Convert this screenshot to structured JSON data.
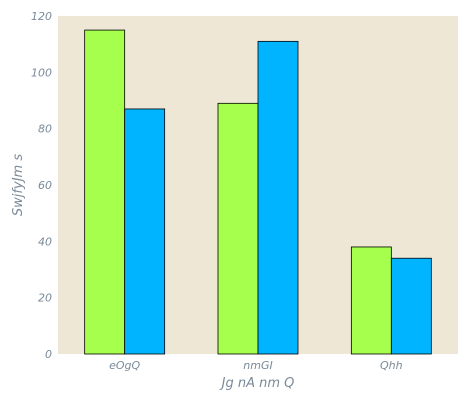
{
  "chart_data": {
    "type": "bar",
    "categories": [
      "eOgQ",
      "nmGI",
      "Qhh"
    ],
    "series": [
      {
        "values": [
          115,
          89,
          38
        ],
        "color": "#a6ff4d"
      },
      {
        "values": [
          87,
          111,
          34
        ],
        "color": "#00b4ff"
      }
    ],
    "xlabel": "Jg  nA nm  Q",
    "ylabel": "SwjfyJm  s",
    "ylim": [
      0,
      120
    ],
    "yticks": [
      0,
      20,
      40,
      60,
      80,
      100,
      120
    ],
    "grid": false,
    "plot_background": "#efe7d6"
  }
}
